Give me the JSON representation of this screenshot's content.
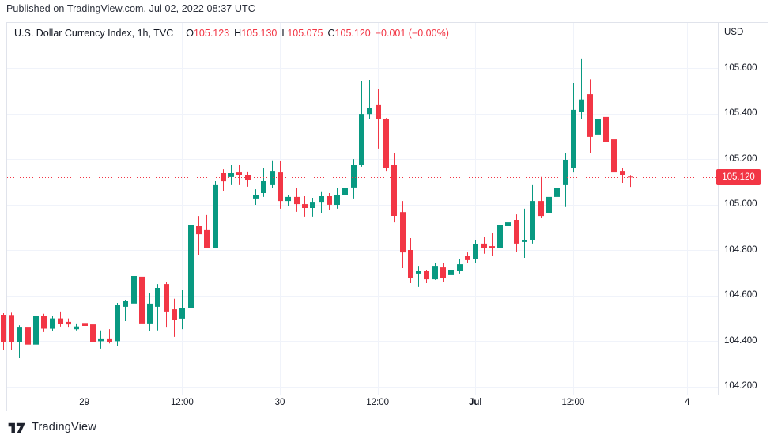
{
  "header": {
    "published": "Published on TradingView.com, Jul 02, 2022 08:37 UTC"
  },
  "chart": {
    "axis_currency": "USD",
    "legend": {
      "symbol": "U.S. Dollar Currency Index, 1h, TVC",
      "o_label": "O",
      "o_value": "105.123",
      "h_label": "H",
      "h_value": "105.130",
      "l_label": "L",
      "l_value": "105.075",
      "c_label": "C",
      "c_value": "105.120",
      "change": "−0.001 (−0.00%)"
    }
  },
  "chart_data": {
    "type": "candlestick",
    "title": "U.S. Dollar Currency Index, 1h, TVC",
    "timeframe": "1h",
    "exchange": "TVC",
    "currency": "USD",
    "up_color": "#089981",
    "down_color": "#f23645",
    "grid_color": "#f0f3fa",
    "grid": true,
    "legend_position": "top-left",
    "ylim": [
      104.165,
      105.798
    ],
    "y_ticks": [
      {
        "label": "105.600",
        "value": 105.6
      },
      {
        "label": "105.400",
        "value": 105.4
      },
      {
        "label": "105.200",
        "value": 105.2
      },
      {
        "label": "105.000",
        "value": 105.0
      },
      {
        "label": "104.800",
        "value": 104.8
      },
      {
        "label": "104.600",
        "value": 104.6
      },
      {
        "label": "104.400",
        "value": 104.4
      },
      {
        "label": "104.200",
        "value": 104.2
      }
    ],
    "x_ticks": [
      {
        "label": "29",
        "slot": 10,
        "bold": false
      },
      {
        "label": "12:00",
        "slot": 22,
        "bold": false
      },
      {
        "label": "30",
        "slot": 34,
        "bold": false
      },
      {
        "label": "12:00",
        "slot": 46,
        "bold": false
      },
      {
        "label": "Jul",
        "slot": 58,
        "bold": true
      },
      {
        "label": "12:00",
        "slot": 70,
        "bold": false
      },
      {
        "label": "4",
        "slot": 84,
        "bold": false
      }
    ],
    "total_slots": 88,
    "last_price": 105.12,
    "last_price_label": "105.120",
    "open": [
      104.516,
      104.515,
      104.395,
      104.46,
      104.385,
      104.51,
      104.455,
      104.5,
      104.485,
      104.453,
      104.48,
      104.474,
      104.4,
      104.412,
      104.4,
      104.551,
      104.565,
      104.683,
      104.478,
      104.551,
      104.651,
      104.54,
      104.499,
      104.547,
      104.905,
      104.888,
      104.811,
      105.138,
      105.121,
      105.141,
      105.131,
      105.027,
      105.051,
      105.086,
      105.141,
      105.016,
      105.034,
      105.002,
      104.985,
      105.009,
      105.037,
      104.999,
      105.044,
      105.072,
      105.176,
      105.398,
      105.437,
      105.374,
      105.176,
      104.967,
      104.801,
      104.697,
      104.707,
      104.672,
      104.724,
      104.69,
      104.707,
      104.773,
      104.759,
      104.829,
      104.818,
      104.811,
      104.905,
      104.933,
      104.836,
      104.846,
      105.016,
      104.964,
      105.034,
      105.086,
      105.162,
      105.409,
      105.485,
      105.305,
      105.385,
      105.287,
      105.148,
      105.123
    ],
    "high": [
      104.523,
      104.525,
      104.47,
      104.515,
      104.525,
      104.52,
      104.512,
      104.53,
      104.5,
      104.478,
      104.512,
      104.499,
      104.447,
      104.453,
      104.568,
      104.582,
      104.704,
      104.697,
      104.61,
      104.651,
      104.662,
      104.586,
      104.627,
      104.947,
      104.95,
      104.954,
      105.103,
      105.155,
      105.176,
      105.176,
      105.145,
      105.068,
      105.159,
      105.194,
      105.19,
      105.044,
      105.072,
      105.037,
      105.03,
      105.055,
      105.051,
      105.072,
      105.09,
      105.2,
      105.541,
      105.548,
      105.506,
      105.38,
      105.228,
      105.016,
      104.853,
      104.731,
      104.714,
      104.745,
      104.742,
      104.731,
      104.759,
      104.79,
      104.846,
      104.86,
      104.877,
      104.94,
      104.968,
      104.957,
      104.982,
      105.086,
      105.121,
      105.055,
      105.096,
      105.225,
      105.534,
      105.642,
      105.55,
      105.385,
      105.451,
      105.298,
      105.159,
      105.13
    ],
    "low": [
      104.363,
      104.36,
      104.325,
      104.365,
      104.33,
      104.44,
      104.443,
      104.464,
      104.46,
      104.447,
      104.395,
      104.377,
      104.367,
      104.39,
      104.377,
      104.488,
      104.558,
      104.471,
      104.443,
      104.447,
      104.46,
      104.419,
      104.453,
      104.488,
      104.777,
      104.811,
      104.811,
      105.061,
      105.086,
      105.086,
      105.079,
      104.999,
      105.034,
      105.072,
      104.982,
      104.992,
      104.968,
      104.947,
      104.947,
      104.964,
      104.975,
      104.982,
      105.016,
      105.027,
      105.166,
      105.374,
      105.246,
      105.148,
      104.922,
      104.721,
      104.655,
      104.638,
      104.655,
      104.669,
      104.662,
      104.672,
      104.697,
      104.742,
      104.742,
      104.784,
      104.773,
      104.801,
      104.877,
      104.794,
      104.766,
      104.829,
      104.94,
      104.898,
      105.009,
      104.989,
      105.141,
      105.374,
      105.225,
      105.281,
      105.27,
      105.086,
      105.096,
      105.075
    ],
    "close": [
      104.398,
      104.395,
      104.46,
      104.385,
      104.51,
      104.455,
      104.5,
      104.475,
      104.474,
      104.465,
      104.467,
      104.395,
      104.412,
      104.395,
      104.558,
      104.575,
      104.686,
      104.478,
      104.565,
      104.634,
      104.53,
      104.495,
      104.547,
      104.912,
      104.87,
      104.811,
      105.086,
      105.103,
      105.138,
      105.131,
      105.107,
      105.044,
      105.103,
      105.148,
      105.016,
      105.034,
      105.002,
      104.985,
      105.009,
      105.037,
      104.999,
      105.044,
      105.072,
      105.176,
      105.398,
      105.426,
      105.374,
      105.159,
      104.95,
      104.79,
      104.679,
      104.707,
      104.672,
      104.731,
      104.679,
      104.714,
      104.738,
      104.756,
      104.825,
      104.811,
      104.808,
      104.912,
      104.922,
      104.829,
      104.846,
      105.016,
      104.95,
      105.034,
      105.072,
      105.197,
      105.416,
      105.462,
      105.298,
      105.374,
      105.277,
      105.141,
      105.131,
      105.12
    ]
  },
  "footer": {
    "brand": "TradingView"
  }
}
